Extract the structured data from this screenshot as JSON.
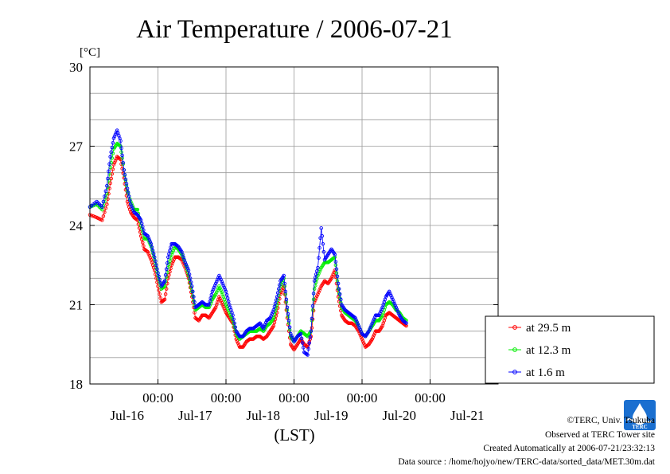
{
  "chart_data": {
    "type": "line",
    "title": "Air Temperature / 2006-07-21",
    "ylabel": "[°C]",
    "xlabel": "(LST)",
    "ylim": [
      18,
      30
    ],
    "yticks": [
      "30",
      "27",
      "24",
      "21",
      "18"
    ],
    "y_minor_step": 1,
    "x_range_days": [
      0,
      6
    ],
    "x_midnight_ticks": [
      {
        "day": 1,
        "label": "00:00"
      },
      {
        "day": 2,
        "label": "00:00"
      },
      {
        "day": 3,
        "label": "00:00"
      },
      {
        "day": 4,
        "label": "00:00"
      },
      {
        "day": 5,
        "label": "00:00"
      }
    ],
    "x_date_labels": [
      {
        "day": 0.5,
        "label": "Jul-16"
      },
      {
        "day": 1.5,
        "label": "Jul-17"
      },
      {
        "day": 2.5,
        "label": "Jul-18"
      },
      {
        "day": 3.5,
        "label": "Jul-19"
      },
      {
        "day": 4.5,
        "label": "Jul-20"
      },
      {
        "day": 5.5,
        "label": "Jul-21"
      }
    ],
    "grid": true,
    "legend_position": "right-bottom",
    "series": [
      {
        "name": "at 29.5 m",
        "color": "#ff0000",
        "values": [
          [
            0.0,
            24.4
          ],
          [
            0.1,
            24.3
          ],
          [
            0.18,
            24.2
          ],
          [
            0.25,
            24.8
          ],
          [
            0.3,
            25.6
          ],
          [
            0.35,
            26.3
          ],
          [
            0.4,
            26.6
          ],
          [
            0.45,
            26.5
          ],
          [
            0.5,
            25.8
          ],
          [
            0.55,
            24.9
          ],
          [
            0.6,
            24.5
          ],
          [
            0.65,
            24.3
          ],
          [
            0.7,
            24.2
          ],
          [
            0.75,
            23.6
          ],
          [
            0.8,
            23.1
          ],
          [
            0.85,
            23.0
          ],
          [
            0.9,
            22.7
          ],
          [
            0.95,
            22.3
          ],
          [
            1.0,
            21.7
          ],
          [
            1.05,
            21.1
          ],
          [
            1.1,
            21.2
          ],
          [
            1.15,
            22.0
          ],
          [
            1.2,
            22.5
          ],
          [
            1.25,
            22.8
          ],
          [
            1.3,
            22.8
          ],
          [
            1.35,
            22.7
          ],
          [
            1.4,
            22.4
          ],
          [
            1.45,
            22.0
          ],
          [
            1.5,
            21.3
          ],
          [
            1.55,
            20.5
          ],
          [
            1.6,
            20.4
          ],
          [
            1.65,
            20.6
          ],
          [
            1.7,
            20.6
          ],
          [
            1.75,
            20.5
          ],
          [
            1.8,
            20.7
          ],
          [
            1.85,
            20.9
          ],
          [
            1.9,
            21.3
          ],
          [
            1.95,
            21.0
          ],
          [
            2.0,
            20.7
          ],
          [
            2.05,
            20.5
          ],
          [
            2.1,
            20.3
          ],
          [
            2.15,
            19.7
          ],
          [
            2.2,
            19.4
          ],
          [
            2.25,
            19.4
          ],
          [
            2.3,
            19.6
          ],
          [
            2.35,
            19.7
          ],
          [
            2.4,
            19.7
          ],
          [
            2.45,
            19.8
          ],
          [
            2.5,
            19.8
          ],
          [
            2.55,
            19.7
          ],
          [
            2.6,
            19.8
          ],
          [
            2.65,
            20.0
          ],
          [
            2.7,
            20.2
          ],
          [
            2.75,
            20.7
          ],
          [
            2.8,
            21.4
          ],
          [
            2.85,
            21.7
          ],
          [
            2.9,
            20.5
          ],
          [
            2.95,
            19.5
          ],
          [
            3.0,
            19.3
          ],
          [
            3.05,
            19.5
          ],
          [
            3.1,
            19.7
          ],
          [
            3.15,
            19.5
          ],
          [
            3.2,
            19.4
          ],
          [
            3.25,
            19.8
          ],
          [
            3.3,
            21.1
          ],
          [
            3.35,
            21.4
          ],
          [
            3.4,
            21.7
          ],
          [
            3.45,
            21.9
          ],
          [
            3.5,
            21.8
          ],
          [
            3.55,
            22.0
          ],
          [
            3.6,
            22.3
          ],
          [
            3.65,
            21.3
          ],
          [
            3.7,
            20.6
          ],
          [
            3.75,
            20.4
          ],
          [
            3.8,
            20.3
          ],
          [
            3.85,
            20.3
          ],
          [
            3.9,
            20.2
          ],
          [
            3.95,
            20.0
          ],
          [
            4.0,
            19.7
          ],
          [
            4.05,
            19.4
          ],
          [
            4.1,
            19.5
          ],
          [
            4.15,
            19.7
          ],
          [
            4.2,
            20.0
          ],
          [
            4.25,
            20.0
          ],
          [
            4.3,
            20.2
          ],
          [
            4.35,
            20.6
          ],
          [
            4.4,
            20.7
          ],
          [
            4.45,
            20.6
          ],
          [
            4.5,
            20.5
          ],
          [
            4.55,
            20.4
          ],
          [
            4.6,
            20.3
          ],
          [
            4.65,
            20.2
          ]
        ]
      },
      {
        "name": "at 12.3 m",
        "color": "#00ee00",
        "values": [
          [
            0.0,
            24.7
          ],
          [
            0.1,
            24.8
          ],
          [
            0.18,
            24.6
          ],
          [
            0.25,
            25.2
          ],
          [
            0.3,
            26.2
          ],
          [
            0.35,
            26.9
          ],
          [
            0.4,
            27.1
          ],
          [
            0.45,
            27.0
          ],
          [
            0.5,
            26.1
          ],
          [
            0.55,
            25.3
          ],
          [
            0.6,
            24.9
          ],
          [
            0.65,
            24.6
          ],
          [
            0.7,
            24.6
          ],
          [
            0.75,
            24.0
          ],
          [
            0.8,
            23.5
          ],
          [
            0.85,
            23.5
          ],
          [
            0.9,
            23.2
          ],
          [
            0.95,
            22.7
          ],
          [
            1.0,
            22.1
          ],
          [
            1.05,
            21.6
          ],
          [
            1.1,
            21.7
          ],
          [
            1.15,
            22.4
          ],
          [
            1.2,
            22.9
          ],
          [
            1.25,
            23.2
          ],
          [
            1.3,
            23.1
          ],
          [
            1.35,
            22.9
          ],
          [
            1.4,
            22.6
          ],
          [
            1.45,
            22.1
          ],
          [
            1.5,
            21.5
          ],
          [
            1.55,
            20.8
          ],
          [
            1.6,
            20.9
          ],
          [
            1.65,
            21.0
          ],
          [
            1.7,
            20.9
          ],
          [
            1.75,
            20.9
          ],
          [
            1.8,
            21.2
          ],
          [
            1.85,
            21.4
          ],
          [
            1.9,
            21.7
          ],
          [
            1.95,
            21.4
          ],
          [
            2.0,
            21.0
          ],
          [
            2.05,
            20.7
          ],
          [
            2.1,
            20.4
          ],
          [
            2.15,
            19.9
          ],
          [
            2.2,
            19.7
          ],
          [
            2.25,
            19.8
          ],
          [
            2.3,
            19.9
          ],
          [
            2.35,
            20.0
          ],
          [
            2.4,
            20.0
          ],
          [
            2.45,
            20.0
          ],
          [
            2.5,
            20.1
          ],
          [
            2.55,
            20.0
          ],
          [
            2.6,
            20.2
          ],
          [
            2.65,
            20.3
          ],
          [
            2.7,
            20.5
          ],
          [
            2.75,
            21.0
          ],
          [
            2.8,
            21.7
          ],
          [
            2.85,
            22.0
          ],
          [
            2.9,
            20.8
          ],
          [
            2.95,
            19.8
          ],
          [
            3.0,
            19.6
          ],
          [
            3.05,
            19.8
          ],
          [
            3.1,
            20.0
          ],
          [
            3.15,
            19.9
          ],
          [
            3.2,
            19.8
          ],
          [
            3.25,
            20.0
          ],
          [
            3.3,
            21.6
          ],
          [
            3.35,
            22.1
          ],
          [
            3.4,
            22.4
          ],
          [
            3.45,
            22.6
          ],
          [
            3.5,
            22.6
          ],
          [
            3.55,
            22.7
          ],
          [
            3.6,
            22.8
          ],
          [
            3.65,
            21.6
          ],
          [
            3.7,
            20.9
          ],
          [
            3.75,
            20.7
          ],
          [
            3.8,
            20.6
          ],
          [
            3.85,
            20.5
          ],
          [
            3.9,
            20.4
          ],
          [
            3.95,
            20.2
          ],
          [
            4.0,
            19.9
          ],
          [
            4.05,
            19.8
          ],
          [
            4.1,
            20.0
          ],
          [
            4.15,
            20.2
          ],
          [
            4.2,
            20.4
          ],
          [
            4.25,
            20.4
          ],
          [
            4.3,
            20.6
          ],
          [
            4.35,
            21.0
          ],
          [
            4.4,
            21.1
          ],
          [
            4.45,
            21.0
          ],
          [
            4.5,
            20.8
          ],
          [
            4.55,
            20.7
          ],
          [
            4.6,
            20.5
          ],
          [
            4.65,
            20.4
          ]
        ]
      },
      {
        "name": "at 1.6 m",
        "color": "#0000ff",
        "values": [
          [
            0.0,
            24.7
          ],
          [
            0.1,
            24.9
          ],
          [
            0.18,
            24.7
          ],
          [
            0.25,
            25.5
          ],
          [
            0.3,
            26.6
          ],
          [
            0.35,
            27.3
          ],
          [
            0.4,
            27.6
          ],
          [
            0.45,
            27.2
          ],
          [
            0.5,
            26.1
          ],
          [
            0.55,
            25.4
          ],
          [
            0.6,
            24.8
          ],
          [
            0.65,
            24.5
          ],
          [
            0.7,
            24.4
          ],
          [
            0.75,
            24.2
          ],
          [
            0.8,
            23.7
          ],
          [
            0.85,
            23.6
          ],
          [
            0.9,
            23.3
          ],
          [
            0.95,
            22.8
          ],
          [
            1.0,
            22.2
          ],
          [
            1.05,
            21.7
          ],
          [
            1.1,
            21.9
          ],
          [
            1.15,
            22.8
          ],
          [
            1.2,
            23.3
          ],
          [
            1.25,
            23.3
          ],
          [
            1.3,
            23.2
          ],
          [
            1.35,
            23.0
          ],
          [
            1.4,
            22.6
          ],
          [
            1.45,
            22.3
          ],
          [
            1.5,
            21.7
          ],
          [
            1.55,
            20.9
          ],
          [
            1.6,
            21.0
          ],
          [
            1.65,
            21.1
          ],
          [
            1.7,
            21.0
          ],
          [
            1.75,
            21.0
          ],
          [
            1.8,
            21.5
          ],
          [
            1.85,
            21.8
          ],
          [
            1.9,
            22.1
          ],
          [
            1.95,
            21.8
          ],
          [
            2.0,
            21.5
          ],
          [
            2.05,
            21.0
          ],
          [
            2.1,
            20.6
          ],
          [
            2.15,
            20.0
          ],
          [
            2.2,
            19.8
          ],
          [
            2.25,
            19.8
          ],
          [
            2.3,
            20.0
          ],
          [
            2.35,
            20.1
          ],
          [
            2.4,
            20.1
          ],
          [
            2.45,
            20.2
          ],
          [
            2.5,
            20.3
          ],
          [
            2.55,
            20.1
          ],
          [
            2.6,
            20.4
          ],
          [
            2.65,
            20.5
          ],
          [
            2.7,
            20.8
          ],
          [
            2.75,
            21.3
          ],
          [
            2.8,
            21.9
          ],
          [
            2.85,
            22.1
          ],
          [
            2.9,
            20.9
          ],
          [
            2.95,
            19.9
          ],
          [
            3.0,
            19.6
          ],
          [
            3.05,
            19.8
          ],
          [
            3.1,
            19.9
          ],
          [
            3.15,
            19.2
          ],
          [
            3.2,
            19.1
          ],
          [
            3.25,
            20.0
          ],
          [
            3.3,
            21.9
          ],
          [
            3.35,
            22.4
          ],
          [
            3.4,
            23.9
          ],
          [
            3.45,
            22.7
          ],
          [
            3.5,
            22.9
          ],
          [
            3.55,
            23.1
          ],
          [
            3.6,
            22.9
          ],
          [
            3.65,
            21.8
          ],
          [
            3.7,
            21.0
          ],
          [
            3.75,
            20.8
          ],
          [
            3.8,
            20.7
          ],
          [
            3.85,
            20.6
          ],
          [
            3.9,
            20.5
          ],
          [
            3.95,
            20.2
          ],
          [
            4.0,
            19.9
          ],
          [
            4.05,
            19.8
          ],
          [
            4.1,
            20.0
          ],
          [
            4.15,
            20.3
          ],
          [
            4.2,
            20.6
          ],
          [
            4.25,
            20.6
          ],
          [
            4.3,
            20.9
          ],
          [
            4.35,
            21.3
          ],
          [
            4.4,
            21.5
          ],
          [
            4.45,
            21.2
          ],
          [
            4.5,
            20.9
          ],
          [
            4.55,
            20.6
          ],
          [
            4.6,
            20.4
          ],
          [
            4.65,
            20.3
          ]
        ]
      }
    ]
  },
  "footer": {
    "copyright": "©TERC, Univ. Tsukuba",
    "observed": "Observed at TERC Tower site",
    "created": "Created Automatically at 2006-07-21/23:32:13",
    "source": "Data source : /home/hojyo/new/TERC-data/sorted_data/MET.30m.dat"
  },
  "logo": {
    "text": "TERC",
    "color": "#1a6fd0"
  }
}
